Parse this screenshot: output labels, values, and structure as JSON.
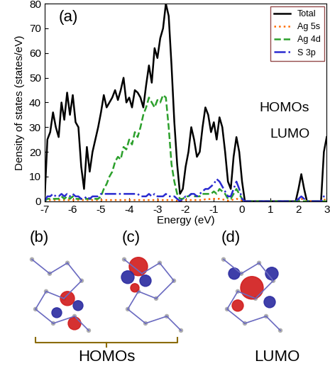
{
  "chart_data": {
    "type": "line",
    "x_label": "Energy (eV)",
    "y_label": "Density of states (states/eV)",
    "annotations": [
      "(a)",
      "HOMOs",
      "LUMO"
    ],
    "xlim": [
      -7,
      3
    ],
    "xticks": [
      -7,
      -6,
      -5,
      -4,
      -3,
      -2,
      -1,
      0,
      1,
      2,
      3
    ],
    "ylim": [
      0,
      80
    ],
    "yticks": [
      0,
      10,
      20,
      30,
      40,
      50,
      60,
      70,
      80
    ],
    "legend": "upper right",
    "grid": false,
    "x": [
      -7.0,
      -6.9,
      -6.8,
      -6.7,
      -6.6,
      -6.5,
      -6.4,
      -6.3,
      -6.2,
      -6.1,
      -6.0,
      -5.9,
      -5.8,
      -5.7,
      -5.6,
      -5.5,
      -5.4,
      -5.3,
      -5.2,
      -5.1,
      -5.0,
      -4.9,
      -4.8,
      -4.7,
      -4.6,
      -4.5,
      -4.4,
      -4.3,
      -4.2,
      -4.1,
      -4.0,
      -3.9,
      -3.8,
      -3.7,
      -3.6,
      -3.5,
      -3.4,
      -3.3,
      -3.2,
      -3.1,
      -3.0,
      -2.9,
      -2.8,
      -2.7,
      -2.6,
      -2.5,
      -2.4,
      -2.3,
      -2.2,
      -2.1,
      -2.0,
      -1.9,
      -1.8,
      -1.7,
      -1.6,
      -1.5,
      -1.4,
      -1.3,
      -1.2,
      -1.1,
      -1.0,
      -0.9,
      -0.8,
      -0.7,
      -0.6,
      -0.5,
      -0.4,
      -0.3,
      -0.2,
      -0.1,
      0.0,
      0.1,
      0.2,
      0.3,
      0.4,
      0.5,
      0.6,
      0.7,
      0.8,
      0.9,
      1.0,
      1.1,
      1.2,
      1.3,
      1.4,
      1.5,
      1.6,
      1.7,
      1.8,
      1.9,
      2.0,
      2.1,
      2.2,
      2.3,
      2.4,
      2.5,
      2.6,
      2.7,
      2.8,
      2.9,
      3.0
    ],
    "series": [
      {
        "name": "Total",
        "color": "#000000",
        "line_style": "solid",
        "values": [
          0,
          25,
          28,
          36,
          30,
          26,
          40,
          33,
          44,
          35,
          43,
          32,
          30,
          14,
          5,
          22,
          12,
          20,
          25,
          30,
          36,
          43,
          38,
          40,
          42,
          45,
          41,
          45,
          50,
          40,
          42,
          38,
          45,
          44,
          42,
          38,
          47,
          55,
          48,
          62,
          58,
          66,
          70,
          80,
          75,
          55,
          32,
          15,
          3,
          5,
          14,
          20,
          30,
          25,
          18,
          20,
          30,
          38,
          35,
          28,
          32,
          25,
          34,
          30,
          20,
          8,
          5,
          18,
          26,
          20,
          8,
          0,
          0,
          0,
          0,
          0,
          0,
          0,
          0,
          0,
          0,
          0,
          0,
          0,
          0,
          0,
          0,
          0,
          0,
          0,
          5,
          11,
          5,
          0,
          0,
          0,
          0,
          0,
          0,
          20,
          26
        ]
      },
      {
        "name": "Ag 5s",
        "color": "#ff6a00",
        "line_style": "dotted",
        "values": [
          0,
          0.5,
          0.5,
          0.5,
          0.5,
          0.5,
          0.5,
          0.5,
          0.5,
          0.5,
          0.5,
          0.5,
          0.5,
          0.5,
          0.5,
          0.5,
          0.5,
          0.5,
          0.5,
          0.5,
          0.5,
          0.5,
          0.5,
          0.5,
          0.5,
          0.5,
          0.5,
          0.5,
          0.5,
          0.5,
          0.5,
          0.5,
          0.5,
          0.5,
          0.5,
          0.5,
          0.5,
          0.5,
          0.5,
          0.5,
          0.5,
          0.5,
          0.5,
          0.5,
          0.5,
          0.5,
          0.3,
          0.2,
          0,
          0.2,
          0.5,
          0.5,
          0.5,
          0.5,
          0.5,
          0.5,
          0.5,
          0.8,
          0.8,
          1,
          1,
          1,
          1,
          0.8,
          0.5,
          0.3,
          0.3,
          0.8,
          1,
          0.8,
          0.3,
          0,
          0,
          0,
          0,
          0,
          0,
          0,
          0,
          0,
          0,
          0,
          0,
          0,
          0,
          0,
          0,
          0,
          0,
          0,
          0.5,
          1,
          0.5,
          0,
          0,
          0,
          0,
          0,
          0,
          0.5,
          1
        ]
      },
      {
        "name": "Ag 4d",
        "color": "#2ca02c",
        "line_style": "dashed",
        "values": [
          0,
          1,
          1,
          1,
          1,
          1,
          2,
          1,
          2,
          1,
          2,
          1,
          1,
          1,
          1,
          1,
          1,
          1,
          1,
          1,
          2,
          5,
          7,
          10,
          12,
          16,
          18,
          17,
          22,
          21,
          25,
          23,
          28,
          26,
          30,
          35,
          38,
          42,
          40,
          38,
          41,
          40,
          43,
          42,
          30,
          15,
          8,
          3,
          1,
          1,
          2,
          2,
          3,
          2,
          2,
          2,
          3,
          3,
          3,
          3,
          4,
          3,
          5,
          4,
          3,
          1,
          1,
          3,
          5,
          3,
          1,
          0,
          0,
          0,
          0,
          0,
          0,
          0,
          0,
          0,
          0,
          0,
          0,
          0,
          0,
          0,
          0,
          0,
          0,
          0,
          0,
          0,
          0,
          0,
          0,
          0,
          0,
          0,
          0,
          0,
          0
        ]
      },
      {
        "name": "S 3p",
        "color": "#2b2bd0",
        "line_style": "dashdot",
        "values": [
          0,
          2,
          2,
          3,
          2,
          2,
          3,
          2,
          3,
          2,
          3,
          2,
          2,
          1,
          1,
          2,
          1,
          2,
          2,
          2,
          3,
          3,
          3,
          3,
          3,
          3,
          3,
          3,
          3,
          3,
          3,
          3,
          3,
          3,
          2,
          2,
          2,
          3,
          2,
          3,
          2,
          2,
          2,
          3,
          2,
          2,
          2,
          1,
          0,
          1,
          2,
          2,
          3,
          3,
          2,
          3,
          4,
          5,
          5,
          6,
          7,
          9,
          8,
          6,
          4,
          2,
          2,
          5,
          8,
          5,
          1,
          0,
          0,
          0,
          0,
          0,
          0,
          0,
          0,
          0,
          0,
          0,
          0,
          0,
          0,
          0,
          0,
          0,
          0,
          0,
          1,
          2,
          1,
          0,
          0,
          0,
          0,
          0,
          0,
          2,
          3
        ]
      }
    ]
  },
  "orbital_panels": {
    "panels": [
      "(b)",
      "(c)",
      "(d)"
    ],
    "captions": [
      {
        "text": "HOMOs",
        "panels": [
          "(b)",
          "(c)"
        ]
      },
      {
        "text": "LUMO",
        "panels": [
          "(d)"
        ]
      }
    ]
  }
}
